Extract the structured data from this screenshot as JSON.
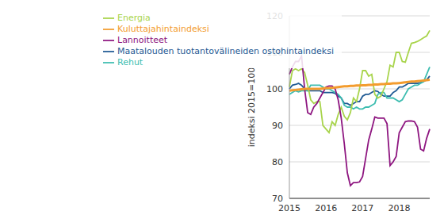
{
  "chart_data": {
    "type": "line",
    "ylabel": "indeksi 2015=100",
    "ylim": [
      70,
      120
    ],
    "yticks": [
      70,
      80,
      90,
      100,
      110,
      120
    ],
    "grid": true,
    "legend": "upper left",
    "categories": [
      "2015",
      null,
      null,
      null,
      null,
      null,
      null,
      null,
      null,
      null,
      null,
      null,
      "2016",
      null,
      null,
      null,
      null,
      null,
      null,
      null,
      null,
      null,
      null,
      null,
      "2017",
      null,
      null,
      null,
      null,
      null,
      null,
      null,
      null,
      null,
      null,
      null,
      "2018",
      null,
      null,
      null,
      null,
      null,
      null,
      null,
      null,
      null,
      null
    ],
    "series": [
      {
        "name": "Maatalouden tuotantovälineiden ostohintaindeksi",
        "color": "#1f5a94",
        "values": [
          100,
          101,
          101.2,
          101.5,
          101,
          100,
          99.5,
          99.5,
          99.5,
          99.5,
          99.5,
          99,
          99,
          99,
          99,
          98.8,
          98,
          97.5,
          96,
          96,
          95.5,
          96,
          96.5,
          96.5,
          98,
          98.5,
          98.5,
          99,
          99.5,
          99.3,
          98.5,
          98,
          98,
          98,
          99,
          99.5,
          100.5,
          100.5,
          101,
          101.5,
          101.5,
          101.5,
          101.5,
          101.7,
          102,
          102.5,
          103.5
        ]
      },
      {
        "name": "Rehut",
        "color": "#3dbdb0",
        "values": [
          98.5,
          99,
          99.5,
          99.2,
          99.5,
          99.5,
          99.5,
          101,
          101,
          101,
          101,
          100.5,
          100,
          100,
          99.5,
          99,
          98.5,
          97.5,
          95.5,
          95,
          95,
          94.5,
          95,
          94.5,
          94.5,
          95,
          95,
          95.5,
          96,
          98.5,
          99,
          99,
          97.5,
          97.5,
          97.5,
          97,
          96.5,
          97,
          98.5,
          100,
          100.5,
          101,
          101,
          101.5,
          102,
          104,
          106
        ]
      },
      {
        "name": "Energia",
        "color": "#a8d44b",
        "values": [
          100.5,
          105,
          105.5,
          105,
          105.5,
          104.5,
          101,
          97,
          96,
          96.5,
          96.5,
          90,
          89,
          88,
          91,
          90,
          93,
          95,
          92.5,
          91.5,
          93.5,
          97.5,
          96.5,
          100,
          105,
          105,
          103.5,
          104,
          98.5,
          97.5,
          98,
          100,
          102,
          106.5,
          106,
          110,
          110,
          107.5,
          107.3,
          110,
          112.5,
          112.7,
          113,
          113.5,
          114,
          114.5,
          116
        ]
      },
      {
        "name": "Lannoitteet",
        "color": "#8e1680",
        "values": [
          104,
          106,
          107.5,
          107.5,
          109,
          100,
          93.5,
          93,
          95,
          96,
          97.5,
          99,
          100.5,
          100.8,
          100.8,
          100,
          97,
          92,
          85,
          77,
          73.5,
          74.3,
          74.3,
          74.5,
          76,
          81,
          86,
          89,
          92.3,
          92,
          92,
          92,
          90.5,
          79,
          80,
          81.5,
          88,
          89.5,
          91,
          91.2,
          91.2,
          91,
          89.5,
          83.5,
          83,
          86.5,
          89
        ]
      },
      {
        "name": "Kuluttajahintaindeksi",
        "color": "#f39c2e",
        "values": [
          99.5,
          99.6,
          99.7,
          99.8,
          99.9,
          100,
          100,
          100,
          100,
          100,
          100,
          100.1,
          100.2,
          100.2,
          100.3,
          100.4,
          100.5,
          100.6,
          100.7,
          100.7,
          100.8,
          100.8,
          100.9,
          100.9,
          101,
          101,
          101.1,
          101.1,
          101.2,
          101.2,
          101.3,
          101.3,
          101.4,
          101.4,
          101.5,
          101.5,
          101.6,
          101.7,
          101.8,
          101.9,
          102,
          102,
          102.1,
          102.2,
          102.3,
          102.4,
          102.5
        ]
      }
    ]
  }
}
